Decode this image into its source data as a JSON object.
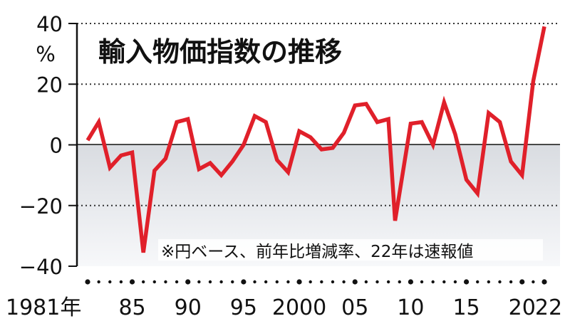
{
  "chart_data": {
    "type": "line",
    "title": "輸入物価指数の推移",
    "note": "※円ベース、前年比増減率、22年は速報値",
    "yunit": "%",
    "ylim": [
      -40,
      40
    ],
    "yticks": [
      "40",
      "20",
      "0",
      "−20",
      "−40"
    ],
    "yticks_values": [
      40,
      20,
      0,
      -20,
      -40
    ],
    "grid": "dotted horizontal",
    "xtick_labels": [
      {
        "year": 1981,
        "label": "1981年"
      },
      {
        "year": 1985,
        "label": "85"
      },
      {
        "year": 1990,
        "label": "90"
      },
      {
        "year": 1995,
        "label": "95"
      },
      {
        "year": 2000,
        "label": "2000"
      },
      {
        "year": 2005,
        "label": "05"
      },
      {
        "year": 2010,
        "label": "10"
      },
      {
        "year": 2015,
        "label": "15"
      },
      {
        "year": 2020,
        "label": "20"
      },
      {
        "year": 2022,
        "label": "22"
      }
    ],
    "years": [
      1981,
      1982,
      1983,
      1984,
      1985,
      1986,
      1987,
      1988,
      1989,
      1990,
      1991,
      1992,
      1993,
      1994,
      1995,
      1996,
      1997,
      1998,
      1999,
      2000,
      2001,
      2002,
      2003,
      2004,
      2005,
      2006,
      2007,
      2008,
      2009,
      2010,
      2011,
      2012,
      2013,
      2014,
      2015,
      2016,
      2017,
      2018,
      2019,
      2020,
      2021,
      2022
    ],
    "series": [
      {
        "color": "#e0202a",
        "points": [
          [
            1981,
            1.5
          ],
          [
            1982,
            7.5
          ],
          [
            1983,
            -7.5
          ],
          [
            1984,
            -3.5
          ],
          [
            1985,
            -2.5
          ],
          [
            1986,
            -35.5
          ],
          [
            1987,
            -8.5
          ],
          [
            1988,
            -4.5
          ],
          [
            1989,
            7.5
          ],
          [
            1990,
            8.5
          ],
          [
            1991,
            -8.0
          ],
          [
            1992,
            -6.0
          ],
          [
            1993,
            -10.0
          ],
          [
            1994,
            -5.5
          ],
          [
            1995,
            0.0
          ],
          [
            1996,
            9.5
          ],
          [
            1997,
            7.5
          ],
          [
            1998,
            -5.0
          ],
          [
            1999,
            -9.0
          ],
          [
            2000,
            4.5
          ],
          [
            2001,
            2.5
          ],
          [
            2002,
            -1.5
          ],
          [
            2003,
            -1.0
          ],
          [
            2004,
            4.0
          ],
          [
            2005,
            13.0
          ],
          [
            2006,
            13.5
          ],
          [
            2007,
            7.5
          ],
          [
            2008,
            8.5
          ],
          [
            2008.6,
            -25.0
          ],
          [
            2010,
            7.0
          ],
          [
            2011,
            7.5
          ],
          [
            2012,
            0.0
          ],
          [
            2013,
            14.0
          ],
          [
            2014,
            3.5
          ],
          [
            2015,
            -11.5
          ],
          [
            2016,
            -16.0
          ],
          [
            2017,
            10.5
          ],
          [
            2018,
            7.5
          ],
          [
            2019,
            -5.5
          ],
          [
            2020,
            -10.0
          ],
          [
            2021,
            21.0
          ],
          [
            2022,
            39.0
          ]
        ]
      }
    ]
  }
}
